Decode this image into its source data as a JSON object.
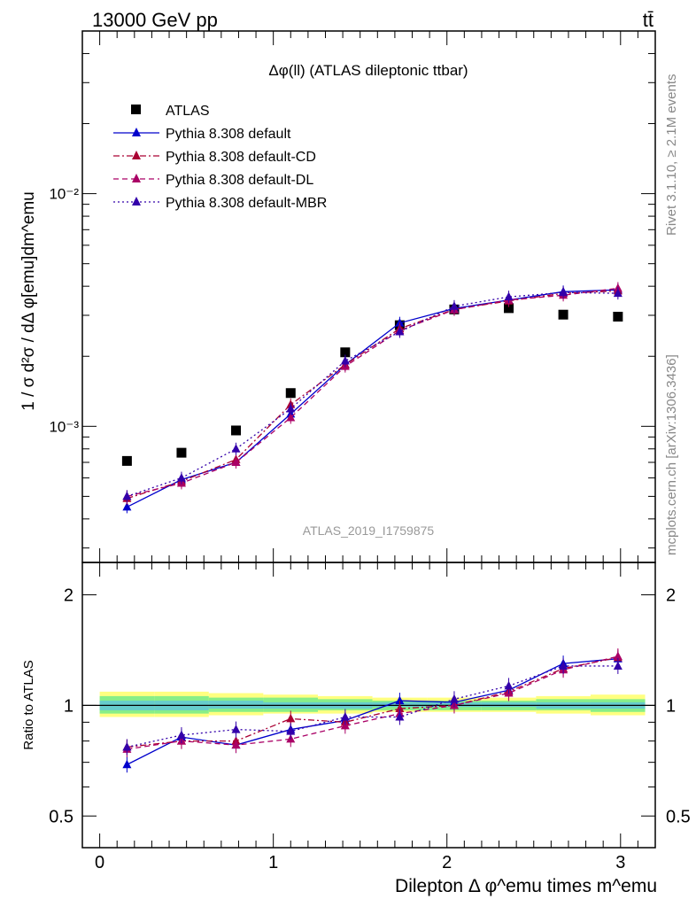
{
  "header": {
    "process": "13000 GeV pp",
    "tag": "tt̄"
  },
  "side_labels": {
    "rivet": "Rivet 3.1.10, ≥ 2.1M events",
    "mcplots": "mcplots.cern.ch [arXiv:1306.3436]"
  },
  "chart_data": [
    {
      "type": "scatter",
      "panel": "main",
      "title": "Δφ(ll) (ATLAS dileptonic ttbar)",
      "ylabel": "1 / σ  d²σ / dΔ φ[emu]dm^emu",
      "yscale": "log",
      "ylim": [
        0.00026,
        0.05
      ],
      "xlim": [
        -0.1,
        3.2
      ],
      "watermark": "ATLAS_2019_I1759875",
      "y_tick_labels": [
        "10⁻³",
        "10⁻²"
      ],
      "legend_position": "top-left",
      "x": [
        0.157,
        0.471,
        0.785,
        1.1,
        1.414,
        1.728,
        2.042,
        2.356,
        2.67,
        2.985
      ],
      "series": [
        {
          "name": "ATLAS",
          "color": "#000000",
          "marker": "square",
          "line": "none",
          "values": [
            0.00071,
            0.00077,
            0.00096,
            0.00139,
            0.00208,
            0.00272,
            0.00318,
            0.00322,
            0.00302,
            0.00296
          ]
        },
        {
          "name": "Pythia 8.308 default",
          "color": "#0000cc",
          "marker": "triangle",
          "line": "solid",
          "values": [
            0.00045,
            0.00059,
            0.0007,
            0.00113,
            0.00184,
            0.00278,
            0.00321,
            0.00349,
            0.00379,
            0.00386
          ]
        },
        {
          "name": "Pythia 8.308 default-CD",
          "color": "#aa0033",
          "marker": "triangle",
          "line": "dashdot",
          "values": [
            0.00049,
            0.00058,
            0.00072,
            0.00124,
            0.00184,
            0.00263,
            0.00318,
            0.00346,
            0.00373,
            0.00382
          ]
        },
        {
          "name": "Pythia 8.308 default-DL",
          "color": "#aa0066",
          "marker": "triangle",
          "line": "dashed",
          "values": [
            0.0005,
            0.00057,
            0.0007,
            0.00109,
            0.00181,
            0.00258,
            0.00317,
            0.00349,
            0.00366,
            0.00392
          ]
        },
        {
          "name": "Pythia 8.308 default-MBR",
          "color": "#3300aa",
          "marker": "triangle",
          "line": "dotted",
          "values": [
            0.0005,
            0.0006,
            0.0008,
            0.00119,
            0.00191,
            0.00255,
            0.00328,
            0.0036,
            0.00376,
            0.00373
          ]
        }
      ]
    },
    {
      "type": "scatter",
      "panel": "ratio",
      "ylabel": "Ratio to ATLAS",
      "yscale": "log",
      "ylim": [
        0.41,
        2.45
      ],
      "y_tick_labels": [
        "0.5",
        "1",
        "2"
      ],
      "xlabel": "Dilepton Δ φ^emu times m^emu",
      "x_tick_labels": [
        "0",
        "1",
        "2",
        "3"
      ],
      "xlim": [
        -0.1,
        3.2
      ],
      "x": [
        0.157,
        0.471,
        0.785,
        1.1,
        1.414,
        1.728,
        2.042,
        2.356,
        2.67,
        2.985
      ],
      "series": [
        {
          "name": "Pythia 8.308 default",
          "color": "#0000cc",
          "marker": "triangle",
          "line": "solid",
          "values": [
            0.69,
            0.82,
            0.78,
            0.86,
            0.91,
            1.03,
            1.02,
            1.1,
            1.3,
            1.34
          ]
        },
        {
          "name": "Pythia 8.308 default-CD",
          "color": "#aa0033",
          "marker": "triangle",
          "line": "dashdot",
          "values": [
            0.77,
            0.8,
            0.8,
            0.92,
            0.9,
            0.98,
            1.0,
            1.09,
            1.26,
            1.35
          ]
        },
        {
          "name": "Pythia 8.308 default-DL",
          "color": "#aa0066",
          "marker": "triangle",
          "line": "dashed",
          "values": [
            0.76,
            0.8,
            0.78,
            0.81,
            0.88,
            0.95,
            1.0,
            1.08,
            1.25,
            1.36
          ]
        },
        {
          "name": "Pythia 8.308 default-MBR",
          "color": "#3300aa",
          "marker": "triangle",
          "line": "dotted",
          "values": [
            0.77,
            0.83,
            0.86,
            0.85,
            0.93,
            0.93,
            1.04,
            1.13,
            1.28,
            1.28
          ]
        }
      ],
      "bands": [
        {
          "color": "#ffff80",
          "upper": [
            1.09,
            1.09,
            1.08,
            1.07,
            1.06,
            1.05,
            1.05,
            1.05,
            1.06,
            1.07
          ],
          "lower": [
            0.93,
            0.93,
            0.94,
            0.95,
            0.95,
            0.96,
            0.96,
            0.96,
            0.95,
            0.94
          ]
        },
        {
          "color": "#88ee88",
          "upper": [
            1.06,
            1.06,
            1.05,
            1.05,
            1.04,
            1.03,
            1.03,
            1.03,
            1.04,
            1.04
          ],
          "lower": [
            0.95,
            0.95,
            0.96,
            0.96,
            0.97,
            0.97,
            0.97,
            0.97,
            0.97,
            0.96
          ]
        },
        {
          "color": "#66cccc",
          "upper": [
            1.03,
            1.03,
            1.03,
            1.02,
            1.02,
            1.02,
            1.02,
            1.02,
            1.02,
            1.02
          ],
          "lower": [
            0.97,
            0.97,
            0.98,
            0.98,
            0.98,
            0.99,
            0.99,
            0.99,
            0.98,
            0.98
          ]
        }
      ]
    }
  ]
}
